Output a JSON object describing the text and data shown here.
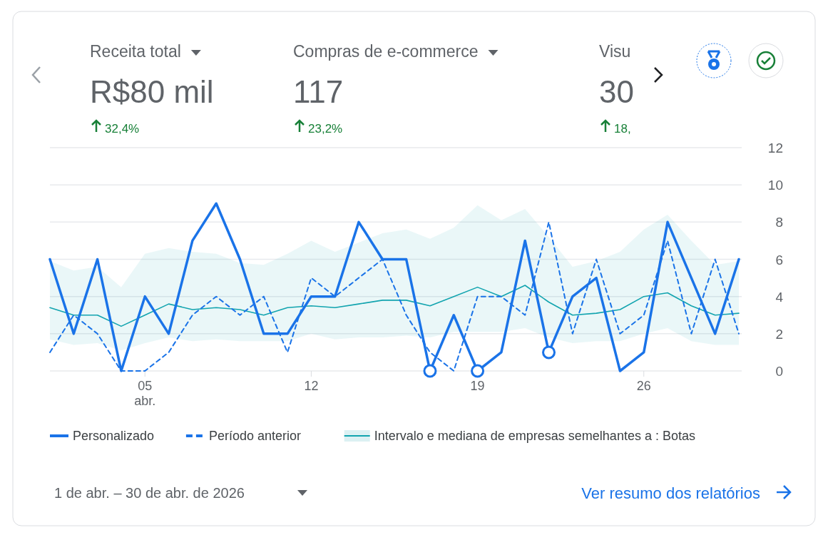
{
  "chart_data": {
    "type": "line",
    "x": [
      "2026-04-01",
      "2026-04-02",
      "2026-04-03",
      "2026-04-04",
      "2026-04-05",
      "2026-04-06",
      "2026-04-07",
      "2026-04-08",
      "2026-04-09",
      "2026-04-10",
      "2026-04-11",
      "2026-04-12",
      "2026-04-13",
      "2026-04-14",
      "2026-04-15",
      "2026-04-16",
      "2026-04-17",
      "2026-04-18",
      "2026-04-19",
      "2026-04-20",
      "2026-04-21",
      "2026-04-22",
      "2026-04-23",
      "2026-04-24",
      "2026-04-25",
      "2026-04-26",
      "2026-04-27",
      "2026-04-28",
      "2026-04-29",
      "2026-04-30"
    ],
    "series": [
      {
        "name": "Intervalo e mediana de empresas semelhantes a : Botas",
        "color": "#12a4af",
        "values": [
          3.4,
          3.0,
          3.0,
          2.4,
          3.0,
          3.6,
          3.3,
          3.4,
          3.3,
          3.0,
          3.4,
          3.5,
          3.4,
          3.6,
          3.8,
          3.8,
          3.5,
          4.0,
          4.5,
          4.0,
          4.6,
          3.7,
          3.0,
          3.1,
          3.3,
          4.0,
          4.2,
          3.5,
          3.0,
          3.1
        ],
        "lower": [
          1.7,
          1.4,
          1.5,
          1.1,
          1.5,
          1.8,
          1.6,
          1.7,
          1.6,
          1.6,
          1.6,
          2.0,
          1.7,
          1.8,
          1.8,
          1.9,
          1.8,
          2.1,
          2.1,
          2.1,
          2.3,
          1.8,
          1.5,
          1.6,
          1.6,
          2.0,
          2.3,
          1.6,
          1.4,
          1.4
        ],
        "upper": [
          5.9,
          5.4,
          5.6,
          4.5,
          6.3,
          6.6,
          6.4,
          6.3,
          5.8,
          5.7,
          6.3,
          7.0,
          6.4,
          6.9,
          7.4,
          7.6,
          7.1,
          7.7,
          8.9,
          8.1,
          8.7,
          7.2,
          5.6,
          5.9,
          6.4,
          7.6,
          8.4,
          7.0,
          5.7,
          5.9
        ]
      },
      {
        "name": "Período anterior",
        "color": "#1a73e8",
        "line_style": "dashed",
        "values": [
          1,
          3,
          2,
          0,
          0,
          1,
          3,
          4,
          3,
          4,
          1,
          5,
          4,
          5,
          6,
          3,
          1,
          0,
          4,
          4,
          3,
          8,
          2,
          6,
          2,
          3,
          7,
          2,
          6,
          2
        ]
      },
      {
        "name": "Personalizado",
        "color": "#1a73e8",
        "values": [
          6,
          2,
          6,
          0,
          4,
          2,
          7,
          9,
          6,
          2,
          2,
          4,
          4,
          8,
          6,
          6,
          0,
          3,
          0,
          1,
          7,
          1,
          4,
          5,
          0,
          1,
          8,
          5,
          2,
          6
        ]
      },
      {
        "type": "scatter",
        "color": "#1a73e8",
        "marker": "circle",
        "x": [
          "2026-04-17",
          "2026-04-19",
          "2026-04-22"
        ],
        "values": [
          0,
          0,
          1
        ]
      }
    ],
    "xlim": [
      "2026-04-01",
      "2026-04-30"
    ],
    "xticks": [
      {
        "value": "2026-04-05",
        "label": "05\nabr."
      },
      {
        "value": "2026-04-12",
        "label": "12"
      },
      {
        "value": "2026-04-19",
        "label": "19"
      },
      {
        "value": "2026-04-26",
        "label": "26"
      }
    ],
    "ylim": [
      0,
      12
    ],
    "yticks": [
      0,
      2,
      4,
      6,
      8,
      10,
      12
    ],
    "grid": "y",
    "legend": "bottom",
    "annotations": [
      "Receita total",
      "R$80 mil",
      "32,4%",
      "Compras de e-commerce",
      "117",
      "23,2%",
      "Visu",
      "30",
      "18,",
      "1 de abr. – 30 de abr. de 2026",
      "Ver resumo dos relatórios"
    ]
  }
}
